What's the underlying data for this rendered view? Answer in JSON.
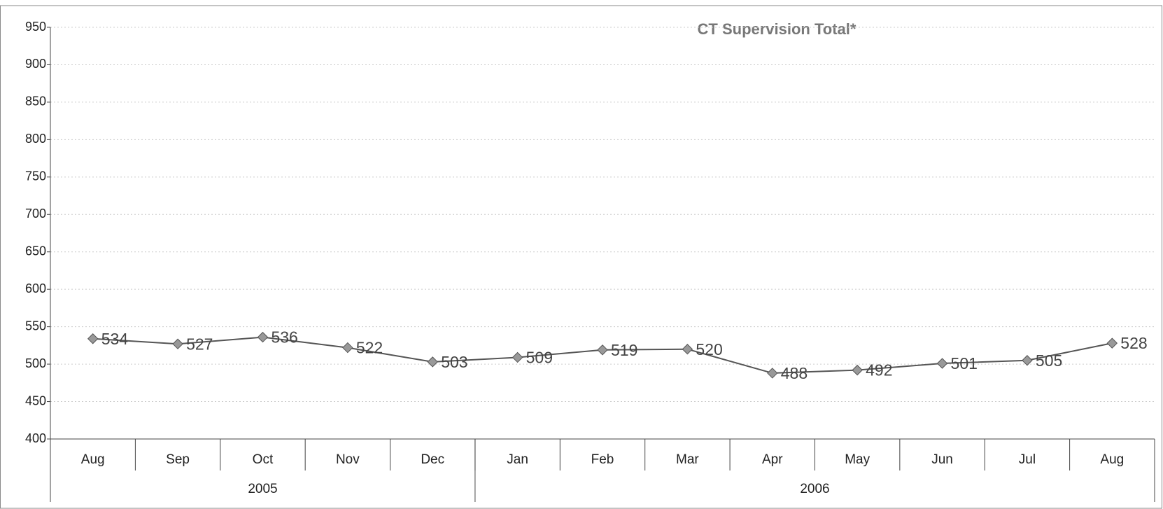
{
  "chart_data": {
    "type": "line",
    "title": "CT Supervision Total*",
    "categories": [
      "Aug",
      "Sep",
      "Oct",
      "Nov",
      "Dec",
      "Jan",
      "Feb",
      "Mar",
      "Apr",
      "May",
      "Jun",
      "Jul",
      "Aug"
    ],
    "groups": [
      {
        "label": "2005",
        "span": 5
      },
      {
        "label": "2006",
        "span": 8
      }
    ],
    "series": [
      {
        "name": "CT Supervision Total*",
        "color": "#555555",
        "marker_color": "#999999",
        "values": [
          534,
          527,
          536,
          522,
          503,
          509,
          519,
          520,
          488,
          492,
          501,
          505,
          528
        ]
      }
    ],
    "ylim": [
      400,
      950
    ],
    "yticks": [
      400,
      450,
      500,
      550,
      600,
      650,
      700,
      750,
      800,
      850,
      900,
      950
    ],
    "grid": true
  }
}
